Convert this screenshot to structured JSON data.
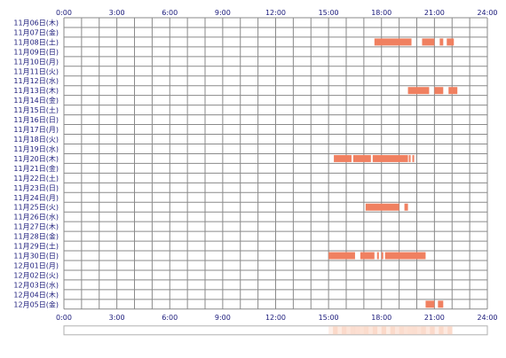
{
  "chart_data": {
    "type": "timeline",
    "x_ticks": [
      "0:00",
      "3:00",
      "6:00",
      "9:00",
      "12:00",
      "15:00",
      "18:00",
      "21:00",
      "24:00"
    ],
    "xlim": [
      0,
      24
    ],
    "grid": true,
    "rows": [
      "11月06日(木)",
      "11月07日(金)",
      "11月08日(土)",
      "11月09日(日)",
      "11月10日(月)",
      "11月11日(火)",
      "11月12日(水)",
      "11月13日(木)",
      "11月14日(金)",
      "11月15日(土)",
      "11月16日(日)",
      "11月17日(月)",
      "11月18日(火)",
      "11月19日(水)",
      "11月20日(木)",
      "11月21日(金)",
      "11月22日(土)",
      "11月23日(日)",
      "11月24日(月)",
      "11月25日(火)",
      "11月26日(水)",
      "11月27日(木)",
      "11月28日(金)",
      "11月29日(土)",
      "11月30日(日)",
      "12月01日(月)",
      "12月02日(火)",
      "12月03日(水)",
      "12月04日(木)",
      "12月05日(金)"
    ],
    "segments": [
      {
        "row": 2,
        "start": 17.6,
        "end": 19.7
      },
      {
        "row": 2,
        "start": 20.3,
        "end": 21.0
      },
      {
        "row": 2,
        "start": 21.3,
        "end": 21.5
      },
      {
        "row": 2,
        "start": 21.7,
        "end": 22.1
      },
      {
        "row": 7,
        "start": 19.5,
        "end": 20.7
      },
      {
        "row": 7,
        "start": 21.0,
        "end": 21.5
      },
      {
        "row": 7,
        "start": 21.8,
        "end": 22.3
      },
      {
        "row": 14,
        "start": 15.3,
        "end": 16.3
      },
      {
        "row": 14,
        "start": 16.4,
        "end": 17.4
      },
      {
        "row": 14,
        "start": 17.5,
        "end": 19.5
      },
      {
        "row": 14,
        "start": 19.55,
        "end": 19.65
      },
      {
        "row": 14,
        "start": 19.75,
        "end": 19.85
      },
      {
        "row": 19,
        "start": 17.1,
        "end": 19.0
      },
      {
        "row": 19,
        "start": 19.3,
        "end": 19.5
      },
      {
        "row": 24,
        "start": 15.0,
        "end": 16.5
      },
      {
        "row": 24,
        "start": 16.8,
        "end": 17.6
      },
      {
        "row": 24,
        "start": 17.75,
        "end": 17.85
      },
      {
        "row": 24,
        "start": 18.0,
        "end": 18.1
      },
      {
        "row": 24,
        "start": 18.2,
        "end": 20.5
      },
      {
        "row": 29,
        "start": 20.5,
        "end": 21.0
      },
      {
        "row": 29,
        "start": 21.2,
        "end": 21.5
      }
    ],
    "bar_color": "#f08060",
    "summary_band": {
      "start": 15.0,
      "end": 22.0,
      "color": "#fbd9c9"
    }
  }
}
